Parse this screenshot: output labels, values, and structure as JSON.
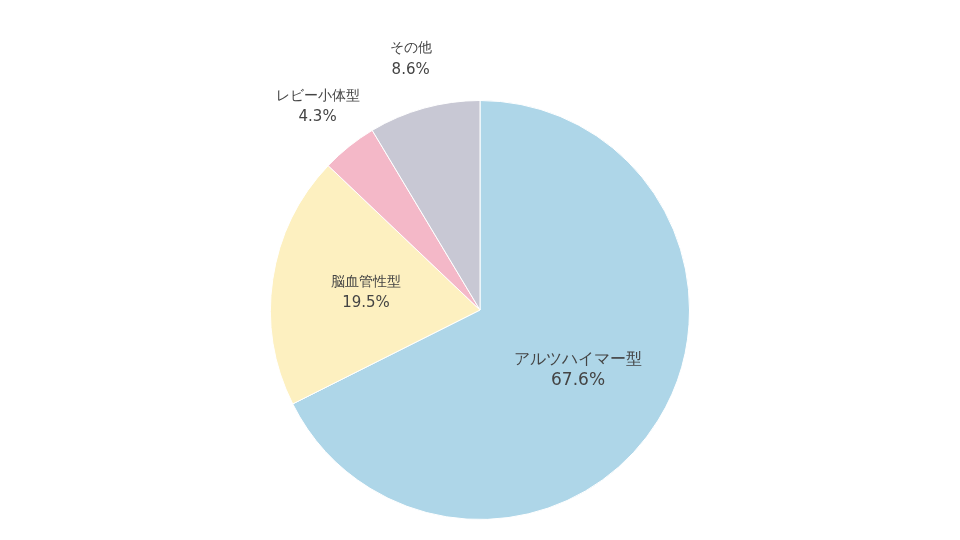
{
  "chart_data": {
    "type": "pie",
    "categories": [
      "アルツハイマー型",
      "脳血管性型",
      "レビー小体型",
      "その他"
    ],
    "values": [
      67.6,
      19.5,
      4.3,
      8.6
    ],
    "value_labels": [
      "67.6%",
      "19.5%",
      "4.3%",
      "8.6%"
    ],
    "data_labels": true,
    "colors": [
      "#aed6e8",
      "#fdf0c0",
      "#f4b8c8",
      "#c8c8d4"
    ]
  }
}
